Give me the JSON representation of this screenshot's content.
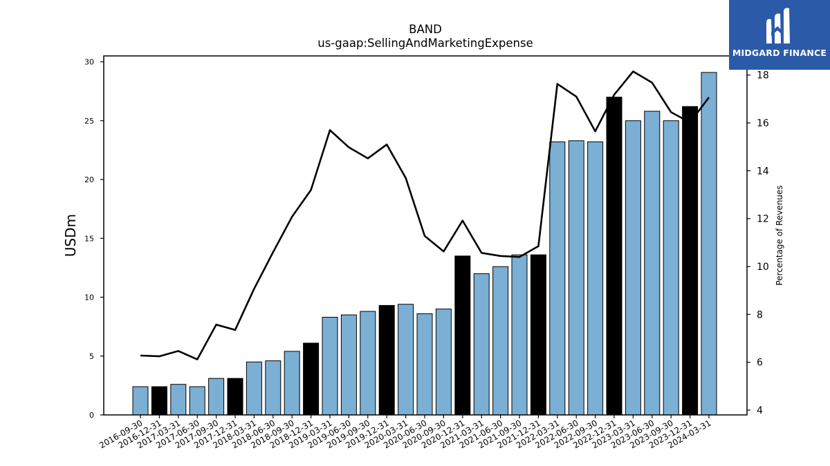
{
  "chart_data": {
    "type": "bar+line",
    "title": "BAND",
    "subtitle": "us-gaap:SellingAndMarketingExpense",
    "ylabel_left": "USDm",
    "ylabel_right": "Percentage of Revenues",
    "ylim_left": [
      0,
      30.5
    ],
    "ylim_right": [
      3.8,
      18.8
    ],
    "yticks_left": [
      0,
      5,
      10,
      15,
      20,
      25,
      30
    ],
    "yticks_right": [
      4,
      6,
      8,
      10,
      12,
      14,
      16,
      18
    ],
    "categories": [
      "2016-09-30",
      "2016-12-31",
      "2017-03-31",
      "2017-06-30",
      "2017-09-30",
      "2017-12-31",
      "2018-03-31",
      "2018-06-30",
      "2018-09-30",
      "2018-12-31",
      "2019-03-31",
      "2019-06-30",
      "2019-09-30",
      "2019-12-31",
      "2020-03-31",
      "2020-06-30",
      "2020-09-30",
      "2020-12-31",
      "2021-03-31",
      "2021-06-30",
      "2021-09-30",
      "2021-12-31",
      "2022-03-31",
      "2022-06-30",
      "2022-09-30",
      "2022-12-31",
      "2023-03-31",
      "2023-06-30",
      "2023-09-30",
      "2023-12-31",
      "2024-03-31"
    ],
    "bar_values": [
      2.4,
      2.4,
      2.6,
      2.4,
      3.1,
      3.1,
      4.5,
      4.6,
      5.4,
      6.1,
      8.3,
      8.5,
      8.8,
      9.3,
      9.4,
      8.6,
      9.0,
      13.5,
      12.0,
      12.6,
      13.6,
      13.6,
      23.2,
      23.3,
      23.2,
      27.0,
      25.0,
      25.8,
      25.0,
      26.2,
      29.1
    ],
    "bar_highlight": [
      false,
      true,
      false,
      false,
      false,
      true,
      false,
      false,
      false,
      true,
      false,
      false,
      false,
      true,
      false,
      false,
      false,
      true,
      false,
      false,
      false,
      true,
      false,
      false,
      false,
      true,
      false,
      false,
      false,
      true,
      false
    ],
    "line_values": [
      6.28,
      6.25,
      6.47,
      6.12,
      7.57,
      7.35,
      9.07,
      10.6,
      12.08,
      13.2,
      15.7,
      14.98,
      14.52,
      15.1,
      13.7,
      11.28,
      10.63,
      11.92,
      10.57,
      10.44,
      10.4,
      10.85,
      17.63,
      17.1,
      15.65,
      17.18,
      18.15,
      17.68,
      16.45,
      16.02,
      17.07
    ],
    "colors": {
      "bar": "#7bafd4",
      "bar_highlight": "#000000",
      "line": "#000000"
    }
  },
  "logo": {
    "text": "MIDGARD FINANCE"
  }
}
